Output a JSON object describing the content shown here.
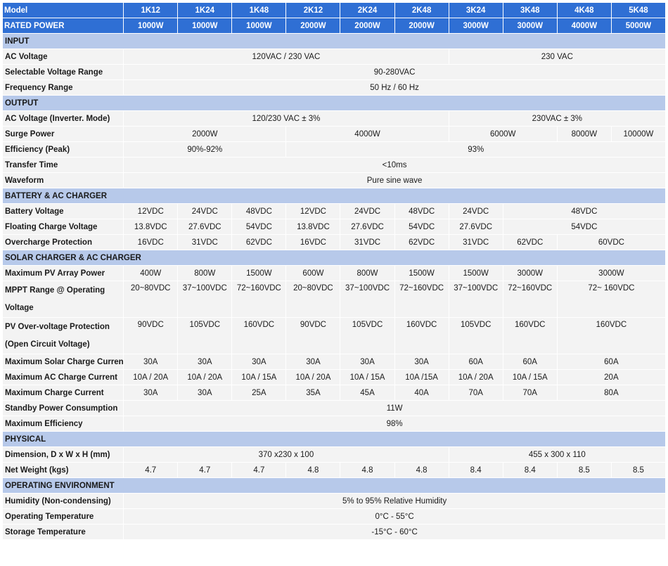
{
  "header": {
    "model_label": "Model",
    "models": [
      "1K12",
      "1K24",
      "1K48",
      "2K12",
      "2K24",
      "2K48",
      "3K24",
      "3K48",
      "4K48",
      "5K48"
    ],
    "rated_label": "RATED POWER",
    "rated": [
      "1000W",
      "1000W",
      "1000W",
      "2000W",
      "2000W",
      "2000W",
      "3000W",
      "3000W",
      "4000W",
      "5000W"
    ]
  },
  "sections": [
    {
      "title": "INPUT",
      "rows": [
        {
          "label": "AC Voltage",
          "cells": [
            {
              "text": "120VAC / 230 VAC",
              "span": 6
            },
            {
              "text": "230 VAC",
              "span": 4
            }
          ]
        },
        {
          "label": "Selectable Voltage Range",
          "cells": [
            {
              "text": "90-280VAC",
              "span": 10
            }
          ]
        },
        {
          "label": "Frequency Range",
          "cells": [
            {
              "text": "50 Hz / 60 Hz",
              "span": 10
            }
          ]
        }
      ]
    },
    {
      "title": "OUTPUT",
      "rows": [
        {
          "label": "AC Voltage (Inverter. Mode)",
          "cells": [
            {
              "text": "120/230 VAC ± 3%",
              "span": 6
            },
            {
              "text": "230VAC ± 3%",
              "span": 4
            }
          ]
        },
        {
          "label": "Surge Power",
          "cells": [
            {
              "text": "2000W",
              "span": 3
            },
            {
              "text": "4000W",
              "span": 3
            },
            {
              "text": "6000W",
              "span": 2
            },
            {
              "text": "8000W",
              "span": 1
            },
            {
              "text": "10000W",
              "span": 1
            }
          ]
        },
        {
          "label": "Efficiency (Peak)",
          "cells": [
            {
              "text": "90%-92%",
              "span": 3
            },
            {
              "text": "93%",
              "span": 7
            }
          ]
        },
        {
          "label": "Transfer Time",
          "cells": [
            {
              "text": "<10ms",
              "span": 10
            }
          ]
        },
        {
          "label": "Waveform",
          "cells": [
            {
              "text": "Pure sine wave",
              "span": 10
            }
          ]
        }
      ]
    },
    {
      "title": "BATTERY & AC CHARGER",
      "rows": [
        {
          "label": "Battery Voltage",
          "cells": [
            {
              "text": "12VDC",
              "span": 1
            },
            {
              "text": "24VDC",
              "span": 1
            },
            {
              "text": "48VDC",
              "span": 1
            },
            {
              "text": "12VDC",
              "span": 1
            },
            {
              "text": "24VDC",
              "span": 1
            },
            {
              "text": "48VDC",
              "span": 1
            },
            {
              "text": "24VDC",
              "span": 1
            },
            {
              "text": "48VDC",
              "span": 3
            }
          ]
        },
        {
          "label": "Floating Charge Voltage",
          "cells": [
            {
              "text": "13.8VDC",
              "span": 1
            },
            {
              "text": "27.6VDC",
              "span": 1
            },
            {
              "text": "54VDC",
              "span": 1
            },
            {
              "text": "13.8VDC",
              "span": 1
            },
            {
              "text": "27.6VDC",
              "span": 1
            },
            {
              "text": "54VDC",
              "span": 1
            },
            {
              "text": "27.6VDC",
              "span": 1
            },
            {
              "text": "54VDC",
              "span": 3
            }
          ]
        },
        {
          "label": "Overcharge Protection",
          "cells": [
            {
              "text": "16VDC",
              "span": 1
            },
            {
              "text": "31VDC",
              "span": 1
            },
            {
              "text": "62VDC",
              "span": 1
            },
            {
              "text": "16VDC",
              "span": 1
            },
            {
              "text": "31VDC",
              "span": 1
            },
            {
              "text": "62VDC",
              "span": 1
            },
            {
              "text": "31VDC",
              "span": 1
            },
            {
              "text": "62VDC",
              "span": 1
            },
            {
              "text": "60VDC",
              "span": 2
            }
          ]
        }
      ]
    },
    {
      "title": "SOLAR CHARGER & AC CHARGER",
      "rows": [
        {
          "label": "Maximum PV Array Power",
          "cells": [
            {
              "text": "400W",
              "span": 1
            },
            {
              "text": "800W",
              "span": 1
            },
            {
              "text": "1500W",
              "span": 1
            },
            {
              "text": "600W",
              "span": 1
            },
            {
              "text": "800W",
              "span": 1
            },
            {
              "text": "1500W",
              "span": 1
            },
            {
              "text": "1500W",
              "span": 1
            },
            {
              "text": "3000W",
              "span": 1
            },
            {
              "text": "3000W",
              "span": 2
            }
          ]
        },
        {
          "label": "MPPT Range @ Operating Voltage",
          "tall": true,
          "cells": [
            {
              "text": "20~80VDC",
              "span": 1
            },
            {
              "text": "37~100VDC",
              "span": 1
            },
            {
              "text": "72~160VDC",
              "span": 1
            },
            {
              "text": "20~80VDC",
              "span": 1
            },
            {
              "text": "37~100VDC",
              "span": 1
            },
            {
              "text": "72~160VDC",
              "span": 1
            },
            {
              "text": "37~100VDC",
              "span": 1
            },
            {
              "text": "72~160VDC",
              "span": 1
            },
            {
              "text": "72~ 160VDC",
              "span": 2
            }
          ]
        },
        {
          "label": "PV Over-voltage Protection (Open Circuit Voltage)",
          "tall": true,
          "cells": [
            {
              "text": "90VDC",
              "span": 1
            },
            {
              "text": "105VDC",
              "span": 1
            },
            {
              "text": "160VDC",
              "span": 1
            },
            {
              "text": "90VDC",
              "span": 1
            },
            {
              "text": "105VDC",
              "span": 1
            },
            {
              "text": "160VDC",
              "span": 1
            },
            {
              "text": "105VDC",
              "span": 1
            },
            {
              "text": "160VDC",
              "span": 1
            },
            {
              "text": "160VDC",
              "span": 2
            }
          ]
        },
        {
          "label": "Maximum Solar Charge Current",
          "cells": [
            {
              "text": "30A",
              "span": 1
            },
            {
              "text": "30A",
              "span": 1
            },
            {
              "text": "30A",
              "span": 1
            },
            {
              "text": "30A",
              "span": 1
            },
            {
              "text": "30A",
              "span": 1
            },
            {
              "text": "30A",
              "span": 1
            },
            {
              "text": "60A",
              "span": 1
            },
            {
              "text": "60A",
              "span": 1
            },
            {
              "text": "60A",
              "span": 2
            }
          ]
        },
        {
          "label": "Maximum AC Charge Current",
          "cells": [
            {
              "text": "10A / 20A",
              "span": 1
            },
            {
              "text": "10A / 20A",
              "span": 1
            },
            {
              "text": "10A / 15A",
              "span": 1
            },
            {
              "text": "10A / 20A",
              "span": 1
            },
            {
              "text": "10A / 15A",
              "span": 1
            },
            {
              "text": "10A /15A",
              "span": 1
            },
            {
              "text": "10A / 20A",
              "span": 1
            },
            {
              "text": "10A / 15A",
              "span": 1
            },
            {
              "text": "20A",
              "span": 2
            }
          ]
        },
        {
          "label": "Maximum Charge Current",
          "cells": [
            {
              "text": "30A",
              "span": 1
            },
            {
              "text": "30A",
              "span": 1
            },
            {
              "text": "25A",
              "span": 1
            },
            {
              "text": "35A",
              "span": 1
            },
            {
              "text": "45A",
              "span": 1
            },
            {
              "text": "40A",
              "span": 1
            },
            {
              "text": "70A",
              "span": 1
            },
            {
              "text": "70A",
              "span": 1
            },
            {
              "text": "80A",
              "span": 2
            }
          ]
        },
        {
          "label": "Standby Power Consumption",
          "cells": [
            {
              "text": "11W",
              "span": 10
            }
          ]
        },
        {
          "label": "Maximum Efficiency",
          "cells": [
            {
              "text": "98%",
              "span": 10
            }
          ]
        }
      ]
    },
    {
      "title": "PHYSICAL",
      "rows": [
        {
          "label": "Dimension, D x W x H (mm)",
          "cells": [
            {
              "text": "370 x230 x 100",
              "span": 6
            },
            {
              "text": "455 x 300 x 110",
              "span": 4
            }
          ]
        },
        {
          "label": "Net Weight (kgs)",
          "cells": [
            {
              "text": "4.7",
              "span": 1
            },
            {
              "text": "4.7",
              "span": 1
            },
            {
              "text": "4.7",
              "span": 1
            },
            {
              "text": "4.8",
              "span": 1
            },
            {
              "text": "4.8",
              "span": 1
            },
            {
              "text": "4.8",
              "span": 1
            },
            {
              "text": "8.4",
              "span": 1
            },
            {
              "text": "8.4",
              "span": 1
            },
            {
              "text": "8.5",
              "span": 1
            },
            {
              "text": "8.5",
              "span": 1
            }
          ]
        }
      ]
    },
    {
      "title": "OPERATING ENVIRONMENT",
      "rows": [
        {
          "label": "Humidity (Non-condensing)",
          "cells": [
            {
              "text": "5% to 95% Relative Humidity",
              "span": 10
            }
          ]
        },
        {
          "label": "Operating Temperature",
          "cells": [
            {
              "text": "0°C - 55°C",
              "span": 10
            }
          ]
        },
        {
          "label": "Storage Temperature",
          "cells": [
            {
              "text": "-15°C - 60°C",
              "span": 10
            }
          ]
        }
      ]
    }
  ]
}
